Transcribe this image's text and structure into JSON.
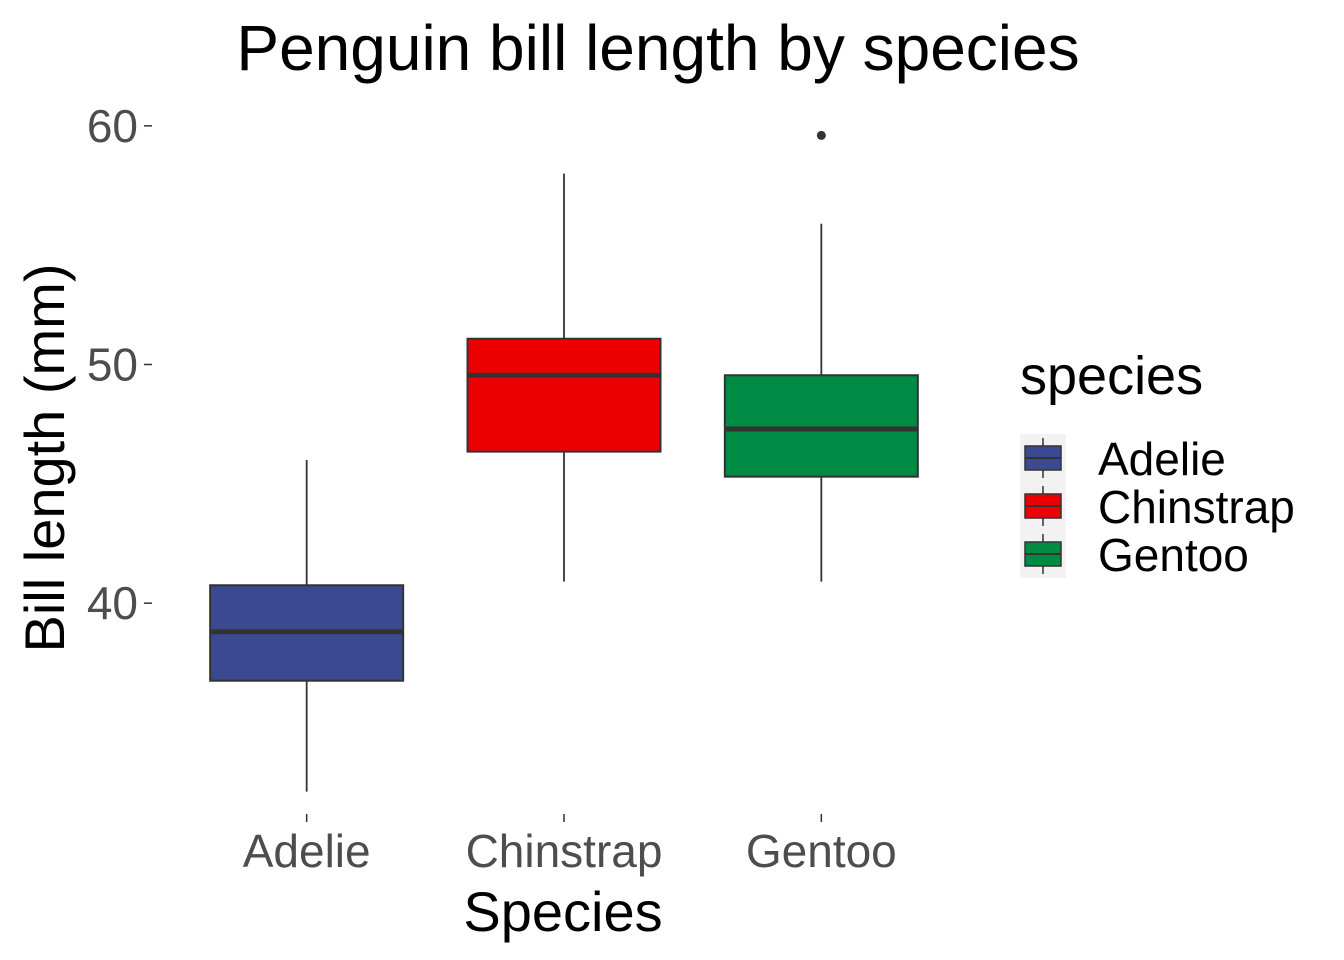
{
  "chart_data": {
    "type": "box",
    "title": "Penguin bill length by species",
    "xlabel": "Species",
    "ylabel": "Bill length (mm)",
    "ylim": [
      31.5,
      61
    ],
    "yticks": [
      40,
      50,
      60
    ],
    "categories": [
      "Adelie",
      "Chinstrap",
      "Gentoo"
    ],
    "boxes": [
      {
        "category": "Adelie",
        "min": 32.1,
        "q1": 36.75,
        "median": 38.8,
        "q3": 40.75,
        "max": 46.0,
        "outliers": [],
        "color": "#3B4992"
      },
      {
        "category": "Chinstrap",
        "min": 40.9,
        "q1": 46.35,
        "median": 49.55,
        "q3": 51.08,
        "max": 58.0,
        "outliers": [],
        "color": "#EE0000"
      },
      {
        "category": "Gentoo",
        "min": 40.9,
        "q1": 45.3,
        "median": 47.3,
        "q3": 49.55,
        "max": 55.9,
        "outliers": [
          59.6
        ],
        "color": "#008B45"
      }
    ],
    "legend": {
      "title": "species",
      "position": "right",
      "entries": [
        "Adelie",
        "Chinstrap",
        "Gentoo"
      ]
    },
    "grid": false
  }
}
